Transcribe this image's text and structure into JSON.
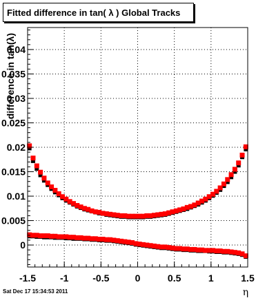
{
  "chart_data": {
    "type": "scatter",
    "title": "Fitted difference in tan( λ )  Global Tracks",
    "xlabel": "η",
    "ylabel": "difference in tan(λ)",
    "xlim": [
      -1.5,
      1.5
    ],
    "ylim": [
      -0.0045,
      0.0445
    ],
    "grid": true,
    "x_ticks": [
      -1.5,
      -1,
      -0.5,
      0,
      0.5,
      1,
      1.5
    ],
    "x_tick_labels": [
      "-1.5",
      "-1",
      "-0.5",
      "0",
      "0.5",
      "1",
      "1.5"
    ],
    "y_ticks": [
      0,
      0.005,
      0.01,
      0.015,
      0.02,
      0.025,
      0.03,
      0.035,
      0.04
    ],
    "y_tick_labels": [
      "0",
      "0.005",
      "0.01",
      "0.015",
      "0.02",
      "0.025",
      "0.03",
      "0.035",
      "0.04"
    ],
    "series": [
      {
        "color": "#000000",
        "values": [
          [
            -1.475,
            0.0198
          ],
          [
            -1.425,
            0.0172
          ],
          [
            -1.375,
            0.0156
          ],
          [
            -1.325,
            0.0143
          ],
          [
            -1.275,
            0.0132
          ],
          [
            -1.225,
            0.0123
          ],
          [
            -1.175,
            0.0115
          ],
          [
            -1.125,
            0.0108
          ],
          [
            -1.075,
            0.0102
          ],
          [
            -1.025,
            0.0096
          ],
          [
            -0.975,
            0.0091
          ],
          [
            -0.925,
            0.0087
          ],
          [
            -0.875,
            0.0083
          ],
          [
            -0.825,
            0.0079
          ],
          [
            -0.775,
            0.0076
          ],
          [
            -0.725,
            0.0073
          ],
          [
            -0.675,
            0.0071
          ],
          [
            -0.625,
            0.0069
          ],
          [
            -0.575,
            0.0067
          ],
          [
            -0.525,
            0.0065
          ],
          [
            -0.475,
            0.0064
          ],
          [
            -0.425,
            0.0062
          ],
          [
            -0.375,
            0.0061
          ],
          [
            -0.325,
            0.006
          ],
          [
            -0.275,
            0.0059
          ],
          [
            -0.225,
            0.0058
          ],
          [
            -0.175,
            0.0058
          ],
          [
            -0.125,
            0.0057
          ],
          [
            -0.075,
            0.0057
          ],
          [
            -0.025,
            0.0057
          ],
          [
            0.025,
            0.0057
          ],
          [
            0.075,
            0.0057
          ],
          [
            0.125,
            0.0058
          ],
          [
            0.175,
            0.0058
          ],
          [
            0.225,
            0.0059
          ],
          [
            0.275,
            0.006
          ],
          [
            0.325,
            0.0061
          ],
          [
            0.375,
            0.0062
          ],
          [
            0.425,
            0.0064
          ],
          [
            0.475,
            0.0066
          ],
          [
            0.525,
            0.0068
          ],
          [
            0.575,
            0.007
          ],
          [
            0.625,
            0.0072
          ],
          [
            0.675,
            0.0074
          ],
          [
            0.725,
            0.0077
          ],
          [
            0.775,
            0.008
          ],
          [
            0.825,
            0.0083
          ],
          [
            0.875,
            0.0087
          ],
          [
            0.925,
            0.0091
          ],
          [
            0.975,
            0.0096
          ],
          [
            1.025,
            0.0101
          ],
          [
            1.075,
            0.0107
          ],
          [
            1.125,
            0.0113
          ],
          [
            1.175,
            0.0121
          ],
          [
            1.225,
            0.0129
          ],
          [
            1.275,
            0.0139
          ],
          [
            1.325,
            0.015
          ],
          [
            1.375,
            0.0163
          ],
          [
            1.425,
            0.018
          ],
          [
            1.475,
            0.0196
          ],
          [
            -1.475,
            0.0018
          ],
          [
            -1.425,
            0.0018
          ],
          [
            -1.375,
            0.0017
          ],
          [
            -1.325,
            0.0017
          ],
          [
            -1.275,
            0.0016
          ],
          [
            -1.225,
            0.0016
          ],
          [
            -1.175,
            0.0016
          ],
          [
            -1.125,
            0.0015
          ],
          [
            -1.075,
            0.0015
          ],
          [
            -1.025,
            0.0015
          ],
          [
            -0.975,
            0.0014
          ],
          [
            -0.925,
            0.0014
          ],
          [
            -0.875,
            0.0013
          ],
          [
            -0.825,
            0.0013
          ],
          [
            -0.775,
            0.0013
          ],
          [
            -0.725,
            0.0012
          ],
          [
            -0.675,
            0.0012
          ],
          [
            -0.625,
            0.0011
          ],
          [
            -0.575,
            0.0011
          ],
          [
            -0.525,
            0.001
          ],
          [
            -0.475,
            0.001
          ],
          [
            -0.425,
            0.0009
          ],
          [
            -0.375,
            0.0009
          ],
          [
            -0.325,
            0.0008
          ],
          [
            -0.275,
            0.0007
          ],
          [
            -0.225,
            0.0006
          ],
          [
            -0.175,
            0.0005
          ],
          [
            -0.125,
            0.0004
          ],
          [
            -0.075,
            0.0003
          ],
          [
            -0.025,
            0.0001
          ],
          [
            0.025,
            0.0
          ],
          [
            0.075,
            -0.0001
          ],
          [
            0.125,
            -0.0002
          ],
          [
            0.175,
            -0.0003
          ],
          [
            0.225,
            -0.0004
          ],
          [
            0.275,
            -0.0005
          ],
          [
            0.325,
            -0.0006
          ],
          [
            0.375,
            -0.0006
          ],
          [
            0.425,
            -0.0007
          ],
          [
            0.475,
            -0.0008
          ],
          [
            0.525,
            -0.0009
          ],
          [
            0.575,
            -0.0009
          ],
          [
            0.625,
            -0.001
          ],
          [
            0.675,
            -0.001
          ],
          [
            0.725,
            -0.0011
          ],
          [
            0.775,
            -0.0011
          ],
          [
            0.825,
            -0.0012
          ],
          [
            0.875,
            -0.0012
          ],
          [
            0.925,
            -0.0012
          ],
          [
            0.975,
            -0.0013
          ],
          [
            1.025,
            -0.0013
          ],
          [
            1.075,
            -0.0014
          ],
          [
            1.125,
            -0.0014
          ],
          [
            1.175,
            -0.0015
          ],
          [
            1.225,
            -0.0015
          ],
          [
            1.275,
            -0.0016
          ],
          [
            1.325,
            -0.0017
          ],
          [
            1.375,
            -0.0018
          ],
          [
            1.425,
            -0.002
          ],
          [
            1.475,
            -0.0024
          ]
        ]
      },
      {
        "color": "#ff0000",
        "values": [
          [
            -1.475,
            0.0203
          ],
          [
            -1.425,
            0.0178
          ],
          [
            -1.375,
            0.0162
          ],
          [
            -1.325,
            0.0149
          ],
          [
            -1.275,
            0.0137
          ],
          [
            -1.225,
            0.0127
          ],
          [
            -1.175,
            0.0119
          ],
          [
            -1.125,
            0.0112
          ],
          [
            -1.075,
            0.0105
          ],
          [
            -1.025,
            0.0099
          ],
          [
            -0.975,
            0.0094
          ],
          [
            -0.925,
            0.0089
          ],
          [
            -0.875,
            0.0085
          ],
          [
            -0.825,
            0.0081
          ],
          [
            -0.775,
            0.0078
          ],
          [
            -0.725,
            0.0075
          ],
          [
            -0.675,
            0.0073
          ],
          [
            -0.625,
            0.007
          ],
          [
            -0.575,
            0.0068
          ],
          [
            -0.525,
            0.0067
          ],
          [
            -0.475,
            0.0065
          ],
          [
            -0.425,
            0.0064
          ],
          [
            -0.375,
            0.0063
          ],
          [
            -0.325,
            0.0062
          ],
          [
            -0.275,
            0.0061
          ],
          [
            -0.225,
            0.006
          ],
          [
            -0.175,
            0.006
          ],
          [
            -0.125,
            0.0059
          ],
          [
            -0.075,
            0.0059
          ],
          [
            -0.025,
            0.0059
          ],
          [
            0.025,
            0.0059
          ],
          [
            0.075,
            0.0059
          ],
          [
            0.125,
            0.006
          ],
          [
            0.175,
            0.006
          ],
          [
            0.225,
            0.0061
          ],
          [
            0.275,
            0.0062
          ],
          [
            0.325,
            0.0063
          ],
          [
            0.375,
            0.0064
          ],
          [
            0.425,
            0.0066
          ],
          [
            0.475,
            0.0068
          ],
          [
            0.525,
            0.007
          ],
          [
            0.575,
            0.0072
          ],
          [
            0.625,
            0.0074
          ],
          [
            0.675,
            0.0077
          ],
          [
            0.725,
            0.0079
          ],
          [
            0.775,
            0.0082
          ],
          [
            0.825,
            0.0086
          ],
          [
            0.875,
            0.009
          ],
          [
            0.925,
            0.0094
          ],
          [
            0.975,
            0.0099
          ],
          [
            1.025,
            0.0104
          ],
          [
            1.075,
            0.011
          ],
          [
            1.125,
            0.0117
          ],
          [
            1.175,
            0.0125
          ],
          [
            1.225,
            0.0134
          ],
          [
            1.275,
            0.0144
          ],
          [
            1.325,
            0.0155
          ],
          [
            1.375,
            0.0168
          ],
          [
            1.425,
            0.0184
          ],
          [
            1.475,
            0.0201
          ],
          [
            -1.475,
            0.0021
          ],
          [
            -1.425,
            0.002
          ],
          [
            -1.375,
            0.002
          ],
          [
            -1.325,
            0.0019
          ],
          [
            -1.275,
            0.0019
          ],
          [
            -1.225,
            0.0019
          ],
          [
            -1.175,
            0.0018
          ],
          [
            -1.125,
            0.0018
          ],
          [
            -1.075,
            0.0017
          ],
          [
            -1.025,
            0.0017
          ],
          [
            -0.975,
            0.0017
          ],
          [
            -0.925,
            0.0016
          ],
          [
            -0.875,
            0.0016
          ],
          [
            -0.825,
            0.0015
          ],
          [
            -0.775,
            0.0015
          ],
          [
            -0.725,
            0.0014
          ],
          [
            -0.675,
            0.0014
          ],
          [
            -0.625,
            0.0013
          ],
          [
            -0.575,
            0.0013
          ],
          [
            -0.525,
            0.0012
          ],
          [
            -0.475,
            0.0012
          ],
          [
            -0.425,
            0.0011
          ],
          [
            -0.375,
            0.0011
          ],
          [
            -0.325,
            0.001
          ],
          [
            -0.275,
            0.0009
          ],
          [
            -0.225,
            0.0008
          ],
          [
            -0.175,
            0.0007
          ],
          [
            -0.125,
            0.0006
          ],
          [
            -0.075,
            0.0005
          ],
          [
            -0.025,
            0.0003
          ],
          [
            0.025,
            0.0002
          ],
          [
            0.075,
            0.0001
          ],
          [
            0.125,
            0.0
          ],
          [
            0.175,
            -0.0001
          ],
          [
            0.225,
            -0.0002
          ],
          [
            0.275,
            -0.0003
          ],
          [
            0.325,
            -0.0004
          ],
          [
            0.375,
            -0.0004
          ],
          [
            0.425,
            -0.0005
          ],
          [
            0.475,
            -0.0006
          ],
          [
            0.525,
            -0.0007
          ],
          [
            0.575,
            -0.0007
          ],
          [
            0.625,
            -0.0008
          ],
          [
            0.675,
            -0.0008
          ],
          [
            0.725,
            -0.0009
          ],
          [
            0.775,
            -0.0009
          ],
          [
            0.825,
            -0.001
          ],
          [
            0.875,
            -0.001
          ],
          [
            0.925,
            -0.0011
          ],
          [
            0.975,
            -0.0011
          ],
          [
            1.025,
            -0.0011
          ],
          [
            1.075,
            -0.0012
          ],
          [
            1.125,
            -0.0012
          ],
          [
            1.175,
            -0.0013
          ],
          [
            1.225,
            -0.0013
          ],
          [
            1.275,
            -0.0014
          ],
          [
            1.325,
            -0.0015
          ],
          [
            1.375,
            -0.0016
          ],
          [
            1.425,
            -0.0018
          ],
          [
            1.475,
            -0.0022
          ]
        ]
      }
    ]
  },
  "timestamp": "Sat Dec 17 15:34:53 2011"
}
